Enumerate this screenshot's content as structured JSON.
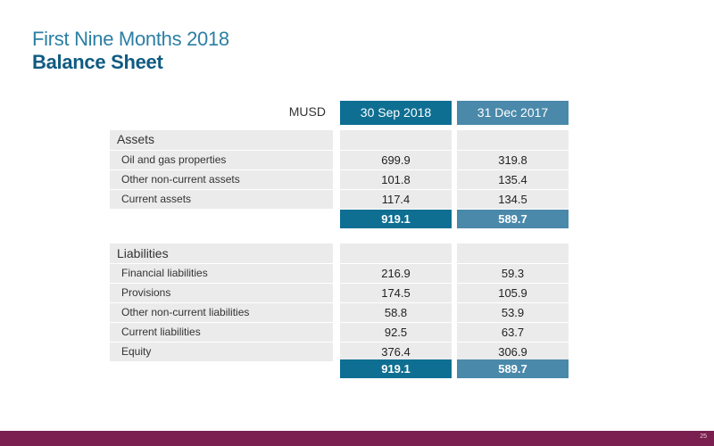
{
  "header": {
    "title": "First Nine Months 2018",
    "subtitle": "Balance Sheet"
  },
  "table": {
    "unit": "MUSD",
    "columns": [
      "30 Sep 2018",
      "31 Dec 2017"
    ],
    "assets": {
      "heading": "Assets",
      "rows": [
        {
          "label": "Oil and gas properties",
          "v1": "699.9",
          "v2": "319.8"
        },
        {
          "label": "Other non-current assets",
          "v1": "101.8",
          "v2": "135.4"
        },
        {
          "label": "Current assets",
          "v1": "117.4",
          "v2": "134.5"
        }
      ],
      "total": {
        "v1": "919.1",
        "v2": "589.7"
      }
    },
    "liabilities": {
      "heading": "Liabilities",
      "rows": [
        {
          "label": "Financial liabilities",
          "v1": "216.9",
          "v2": "59.3"
        },
        {
          "label": "Provisions",
          "v1": "174.5",
          "v2": "105.9"
        },
        {
          "label": "Other non-current liabilities",
          "v1": "58.8",
          "v2": "53.9"
        },
        {
          "label": "Current liabilities",
          "v1": "92.5",
          "v2": "63.7"
        },
        {
          "label": "Equity",
          "v1": "376.4",
          "v2": "306.9"
        }
      ],
      "total": {
        "v1": "919.1",
        "v2": "589.7"
      }
    }
  },
  "footer": {
    "page_number": "25",
    "color": "#7a1f4f"
  },
  "colors": {
    "accent_dark": "#0e6f92",
    "accent_light": "#4a89aa",
    "row_bg": "#ebebeb"
  }
}
